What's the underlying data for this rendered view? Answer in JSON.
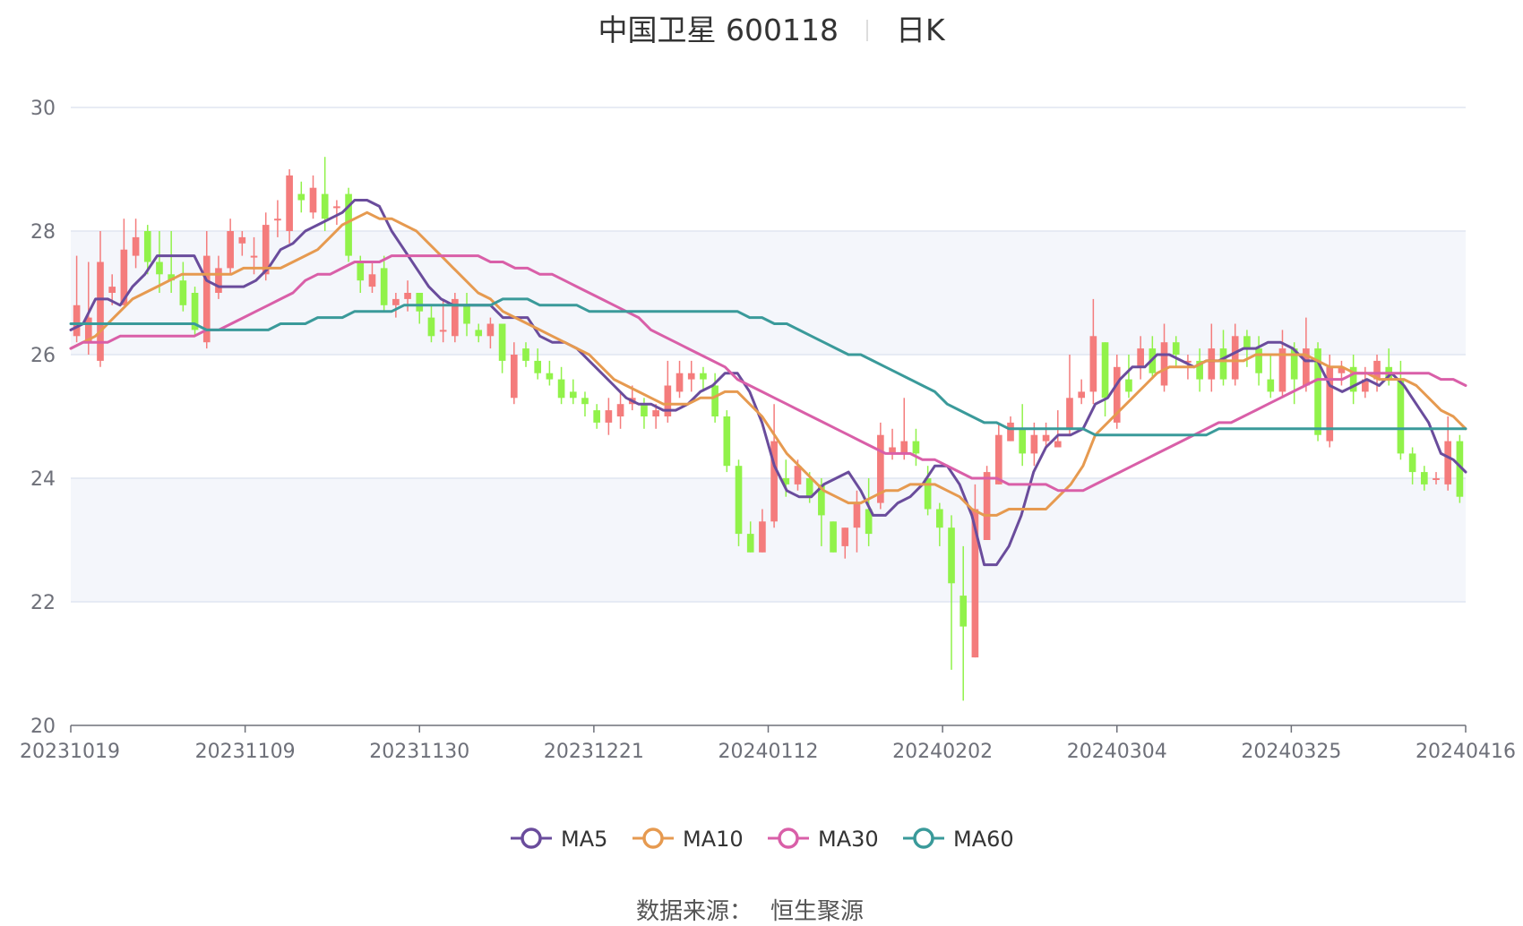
{
  "title": {
    "name": "中国卫星 600118",
    "period": "日K"
  },
  "source": {
    "label": "数据来源：",
    "value": "恒生聚源"
  },
  "colors": {
    "up": "#f47c7c",
    "down": "#91f24a",
    "ma5": "#6a4c9c",
    "ma10": "#e69a50",
    "ma30": "#d95fa8",
    "ma60": "#3a9a9a",
    "grid": "#e0e6f1",
    "band": "#f4f6fb"
  },
  "chart_data": {
    "type": "candlestick",
    "x_tick_labels": [
      "20231019",
      "20231109",
      "20231130",
      "20231221",
      "20240112",
      "20240202",
      "20240304",
      "20240325",
      "20240416"
    ],
    "y_ticks": [
      20,
      22,
      24,
      26,
      28,
      30
    ],
    "ylim": [
      20,
      30
    ],
    "grid": true,
    "legend_position": "bottom",
    "series": [
      {
        "name": "MA5",
        "color": "#6a4c9c",
        "values": [
          26.4,
          26.5,
          26.9,
          26.9,
          26.8,
          27.1,
          27.3,
          27.6,
          27.6,
          27.6,
          27.6,
          27.2,
          27.1,
          27.1,
          27.1,
          27.2,
          27.4,
          27.7,
          27.8,
          28.0,
          28.1,
          28.2,
          28.3,
          28.5,
          28.5,
          28.4,
          28.0,
          27.7,
          27.4,
          27.1,
          26.9,
          26.8,
          26.8,
          26.8,
          26.8,
          26.6,
          26.6,
          26.6,
          26.3,
          26.2,
          26.2,
          26.1,
          25.9,
          25.7,
          25.5,
          25.3,
          25.2,
          25.2,
          25.1,
          25.1,
          25.2,
          25.4,
          25.5,
          25.7,
          25.7,
          25.4,
          24.9,
          24.2,
          23.8,
          23.7,
          23.7,
          23.9,
          24.0,
          24.1,
          23.8,
          23.4,
          23.4,
          23.6,
          23.7,
          23.9,
          24.2,
          24.2,
          23.9,
          23.4,
          22.6,
          22.6,
          22.9,
          23.4,
          24.1,
          24.5,
          24.7,
          24.7,
          24.8,
          25.2,
          25.3,
          25.6,
          25.8,
          25.8,
          26.0,
          26.0,
          25.9,
          25.8,
          25.9,
          25.9,
          26.0,
          26.1,
          26.1,
          26.2,
          26.2,
          26.1,
          25.9,
          25.9,
          25.5,
          25.4,
          25.5,
          25.6,
          25.5,
          25.7,
          25.5,
          25.2,
          24.9,
          24.4,
          24.3,
          24.1
        ]
      },
      {
        "name": "MA10",
        "color": "#e69a50",
        "values": [
          26.1,
          26.2,
          26.3,
          26.5,
          26.7,
          26.9,
          27.0,
          27.1,
          27.2,
          27.3,
          27.3,
          27.3,
          27.3,
          27.3,
          27.4,
          27.4,
          27.4,
          27.4,
          27.5,
          27.6,
          27.7,
          27.9,
          28.1,
          28.2,
          28.3,
          28.2,
          28.2,
          28.1,
          28.0,
          27.8,
          27.6,
          27.4,
          27.2,
          27.0,
          26.9,
          26.7,
          26.6,
          26.5,
          26.4,
          26.3,
          26.2,
          26.1,
          26.0,
          25.8,
          25.6,
          25.5,
          25.4,
          25.3,
          25.2,
          25.2,
          25.2,
          25.3,
          25.3,
          25.4,
          25.4,
          25.2,
          25.0,
          24.7,
          24.4,
          24.2,
          24.0,
          23.8,
          23.7,
          23.6,
          23.6,
          23.7,
          23.8,
          23.8,
          23.9,
          23.9,
          23.9,
          23.8,
          23.7,
          23.5,
          23.4,
          23.4,
          23.5,
          23.5,
          23.5,
          23.5,
          23.7,
          23.9,
          24.2,
          24.7,
          24.9,
          25.1,
          25.3,
          25.5,
          25.7,
          25.8,
          25.8,
          25.8,
          25.9,
          25.9,
          25.9,
          25.9,
          26.0,
          26.0,
          26.0,
          26.0,
          26.0,
          25.9,
          25.8,
          25.8,
          25.7,
          25.7,
          25.6,
          25.6,
          25.6,
          25.5,
          25.3,
          25.1,
          25.0,
          24.8
        ]
      },
      {
        "name": "MA30",
        "color": "#d95fa8",
        "values": [
          26.1,
          26.2,
          26.2,
          26.2,
          26.3,
          26.3,
          26.3,
          26.3,
          26.3,
          26.3,
          26.3,
          26.4,
          26.4,
          26.5,
          26.6,
          26.7,
          26.8,
          26.9,
          27.0,
          27.2,
          27.3,
          27.3,
          27.4,
          27.5,
          27.5,
          27.5,
          27.6,
          27.6,
          27.6,
          27.6,
          27.6,
          27.6,
          27.6,
          27.6,
          27.5,
          27.5,
          27.4,
          27.4,
          27.3,
          27.3,
          27.2,
          27.1,
          27.0,
          26.9,
          26.8,
          26.7,
          26.6,
          26.4,
          26.3,
          26.2,
          26.1,
          26.0,
          25.9,
          25.8,
          25.6,
          25.5,
          25.4,
          25.3,
          25.2,
          25.1,
          25.0,
          24.9,
          24.8,
          24.7,
          24.6,
          24.5,
          24.4,
          24.4,
          24.4,
          24.3,
          24.3,
          24.2,
          24.1,
          24.0,
          24.0,
          24.0,
          23.9,
          23.9,
          23.9,
          23.9,
          23.8,
          23.8,
          23.8,
          23.9,
          24.0,
          24.1,
          24.2,
          24.3,
          24.4,
          24.5,
          24.6,
          24.7,
          24.8,
          24.9,
          24.9,
          25.0,
          25.1,
          25.2,
          25.3,
          25.4,
          25.5,
          25.6,
          25.6,
          25.6,
          25.7,
          25.7,
          25.7,
          25.7,
          25.7,
          25.7,
          25.7,
          25.6,
          25.6,
          25.5
        ]
      },
      {
        "name": "MA60",
        "color": "#3a9a9a",
        "values": [
          26.5,
          26.5,
          26.5,
          26.5,
          26.5,
          26.5,
          26.5,
          26.5,
          26.5,
          26.5,
          26.5,
          26.4,
          26.4,
          26.4,
          26.4,
          26.4,
          26.4,
          26.5,
          26.5,
          26.5,
          26.6,
          26.6,
          26.6,
          26.7,
          26.7,
          26.7,
          26.7,
          26.8,
          26.8,
          26.8,
          26.8,
          26.8,
          26.8,
          26.8,
          26.8,
          26.9,
          26.9,
          26.9,
          26.8,
          26.8,
          26.8,
          26.8,
          26.7,
          26.7,
          26.7,
          26.7,
          26.7,
          26.7,
          26.7,
          26.7,
          26.7,
          26.7,
          26.7,
          26.7,
          26.7,
          26.6,
          26.6,
          26.5,
          26.5,
          26.4,
          26.3,
          26.2,
          26.1,
          26.0,
          26.0,
          25.9,
          25.8,
          25.7,
          25.6,
          25.5,
          25.4,
          25.2,
          25.1,
          25.0,
          24.9,
          24.9,
          24.8,
          24.8,
          24.8,
          24.8,
          24.8,
          24.8,
          24.8,
          24.7,
          24.7,
          24.7,
          24.7,
          24.7,
          24.7,
          24.7,
          24.7,
          24.7,
          24.7,
          24.8,
          24.8,
          24.8,
          24.8,
          24.8,
          24.8,
          24.8,
          24.8,
          24.8,
          24.8,
          24.8,
          24.8,
          24.8,
          24.8,
          24.8,
          24.8,
          24.8,
          24.8,
          24.8,
          24.8,
          24.8
        ]
      }
    ],
    "candles": [
      [
        26.3,
        26.8,
        27.6,
        26.2
      ],
      [
        26.2,
        26.6,
        27.5,
        26.0
      ],
      [
        25.9,
        27.5,
        28.0,
        25.8
      ],
      [
        27.0,
        27.1,
        27.3,
        26.8
      ],
      [
        26.8,
        27.7,
        28.2,
        26.8
      ],
      [
        27.6,
        27.9,
        28.2,
        27.4
      ],
      [
        28.0,
        27.5,
        28.1,
        27.3
      ],
      [
        27.5,
        27.3,
        28.0,
        27.0
      ],
      [
        27.3,
        27.2,
        28.0,
        27.0
      ],
      [
        27.2,
        26.8,
        27.5,
        26.7
      ],
      [
        27.0,
        26.4,
        27.1,
        26.3
      ],
      [
        26.2,
        27.6,
        28.0,
        26.1
      ],
      [
        27.0,
        27.4,
        27.6,
        26.9
      ],
      [
        27.4,
        28.0,
        28.2,
        27.3
      ],
      [
        27.8,
        27.9,
        28.0,
        27.6
      ],
      [
        27.6,
        27.6,
        27.9,
        27.3
      ],
      [
        27.3,
        28.1,
        28.3,
        27.2
      ],
      [
        28.2,
        28.2,
        28.5,
        27.9
      ],
      [
        28.0,
        28.9,
        29.0,
        27.8
      ],
      [
        28.6,
        28.5,
        28.8,
        28.3
      ],
      [
        28.3,
        28.7,
        28.9,
        28.2
      ],
      [
        28.6,
        28.2,
        29.2,
        28.0
      ],
      [
        28.4,
        28.4,
        28.5,
        28.1
      ],
      [
        28.6,
        27.6,
        28.7,
        27.5
      ],
      [
        27.5,
        27.2,
        27.6,
        27.0
      ],
      [
        27.1,
        27.3,
        27.5,
        27.0
      ],
      [
        27.4,
        26.8,
        27.6,
        26.7
      ],
      [
        26.8,
        26.9,
        27.0,
        26.6
      ],
      [
        26.9,
        27.0,
        27.2,
        26.7
      ],
      [
        27.0,
        26.7,
        27.0,
        26.5
      ],
      [
        26.6,
        26.3,
        26.8,
        26.2
      ],
      [
        26.4,
        26.4,
        26.9,
        26.2
      ],
      [
        26.3,
        26.9,
        27.0,
        26.2
      ],
      [
        26.8,
        26.5,
        27.0,
        26.3
      ],
      [
        26.4,
        26.3,
        26.5,
        26.2
      ],
      [
        26.3,
        26.5,
        26.6,
        26.1
      ],
      [
        26.5,
        25.9,
        26.5,
        25.7
      ],
      [
        25.3,
        26.0,
        26.2,
        25.2
      ],
      [
        26.1,
        25.9,
        26.2,
        25.8
      ],
      [
        25.9,
        25.7,
        26.1,
        25.6
      ],
      [
        25.7,
        25.6,
        25.9,
        25.5
      ],
      [
        25.6,
        25.3,
        25.8,
        25.2
      ],
      [
        25.4,
        25.3,
        25.6,
        25.2
      ],
      [
        25.3,
        25.2,
        25.4,
        25.0
      ],
      [
        25.1,
        24.9,
        25.2,
        24.8
      ],
      [
        24.9,
        25.1,
        25.3,
        24.7
      ],
      [
        25.0,
        25.2,
        25.4,
        24.8
      ],
      [
        25.2,
        25.3,
        25.5,
        25.1
      ],
      [
        25.2,
        25.0,
        25.3,
        24.8
      ],
      [
        25.0,
        25.1,
        25.2,
        24.8
      ],
      [
        25.0,
        25.5,
        25.9,
        24.9
      ],
      [
        25.4,
        25.7,
        25.9,
        25.3
      ],
      [
        25.6,
        25.7,
        25.9,
        25.4
      ],
      [
        25.7,
        25.6,
        25.8,
        25.4
      ],
      [
        25.5,
        25.0,
        25.7,
        24.9
      ],
      [
        25.0,
        24.2,
        25.1,
        24.1
      ],
      [
        24.2,
        23.1,
        24.3,
        22.9
      ],
      [
        23.1,
        22.8,
        23.3,
        22.8
      ],
      [
        22.8,
        23.3,
        23.5,
        22.8
      ],
      [
        23.3,
        24.6,
        25.2,
        23.2
      ],
      [
        24.0,
        23.9,
        24.3,
        23.7
      ],
      [
        23.9,
        24.2,
        24.3,
        23.8
      ],
      [
        24.0,
        23.7,
        24.1,
        23.6
      ],
      [
        23.9,
        23.4,
        24.0,
        22.9
      ],
      [
        23.3,
        22.8,
        23.3,
        22.8
      ],
      [
        22.9,
        23.2,
        23.2,
        22.7
      ],
      [
        23.2,
        23.6,
        23.8,
        22.8
      ],
      [
        23.5,
        23.1,
        24.0,
        22.9
      ],
      [
        23.6,
        24.7,
        24.9,
        23.5
      ],
      [
        24.4,
        24.5,
        24.8,
        24.3
      ],
      [
        24.4,
        24.6,
        25.3,
        24.3
      ],
      [
        24.6,
        24.4,
        24.8,
        24.2
      ],
      [
        24.0,
        23.5,
        24.2,
        23.4
      ],
      [
        23.5,
        23.2,
        23.6,
        22.9
      ],
      [
        23.2,
        22.3,
        23.4,
        20.9
      ],
      [
        22.1,
        21.6,
        22.9,
        20.4
      ],
      [
        21.1,
        23.5,
        23.9,
        21.1
      ],
      [
        23.0,
        24.1,
        24.2,
        23.0
      ],
      [
        23.9,
        24.7,
        24.9,
        23.9
      ],
      [
        24.6,
        24.9,
        25.0,
        24.6
      ],
      [
        24.8,
        24.4,
        25.2,
        24.2
      ],
      [
        24.4,
        24.7,
        24.9,
        24.2
      ],
      [
        24.6,
        24.7,
        24.9,
        24.5
      ],
      [
        24.5,
        24.6,
        25.1,
        24.5
      ],
      [
        24.8,
        25.3,
        26.0,
        24.7
      ],
      [
        25.3,
        25.4,
        25.6,
        25.2
      ],
      [
        25.4,
        26.3,
        26.9,
        25.2
      ],
      [
        26.2,
        25.3,
        26.2,
        25.0
      ],
      [
        24.9,
        25.8,
        26.0,
        24.8
      ],
      [
        25.6,
        25.4,
        26.0,
        25.3
      ],
      [
        25.8,
        26.1,
        26.3,
        25.6
      ],
      [
        26.1,
        25.7,
        26.3,
        25.6
      ],
      [
        25.5,
        26.2,
        26.5,
        25.4
      ],
      [
        26.2,
        26.0,
        26.3,
        25.8
      ],
      [
        25.9,
        25.9,
        26.0,
        25.6
      ],
      [
        25.9,
        25.6,
        26.1,
        25.4
      ],
      [
        25.6,
        26.1,
        26.5,
        25.4
      ],
      [
        26.1,
        25.6,
        26.4,
        25.5
      ],
      [
        25.6,
        26.3,
        26.5,
        25.5
      ],
      [
        26.3,
        26.1,
        26.4,
        25.8
      ],
      [
        26.1,
        25.7,
        26.3,
        25.5
      ],
      [
        25.6,
        25.4,
        26.0,
        25.3
      ],
      [
        25.4,
        26.1,
        26.4,
        25.3
      ],
      [
        26.1,
        25.6,
        26.2,
        25.2
      ],
      [
        25.5,
        26.1,
        26.6,
        25.4
      ],
      [
        26.1,
        24.7,
        26.2,
        24.6
      ],
      [
        24.6,
        25.8,
        26.0,
        24.5
      ],
      [
        25.7,
        25.8,
        25.9,
        25.5
      ],
      [
        25.8,
        25.4,
        26.0,
        25.2
      ],
      [
        25.4,
        25.6,
        25.8,
        25.3
      ],
      [
        25.6,
        25.9,
        26.0,
        25.4
      ],
      [
        25.8,
        25.6,
        26.1,
        25.5
      ],
      [
        25.6,
        24.4,
        25.9,
        24.3
      ],
      [
        24.4,
        24.1,
        24.5,
        23.9
      ],
      [
        24.1,
        23.9,
        24.2,
        23.8
      ],
      [
        24.0,
        24.0,
        24.1,
        23.9
      ],
      [
        23.9,
        24.6,
        25.0,
        23.8
      ],
      [
        24.6,
        23.7,
        24.7,
        23.6
      ]
    ]
  }
}
